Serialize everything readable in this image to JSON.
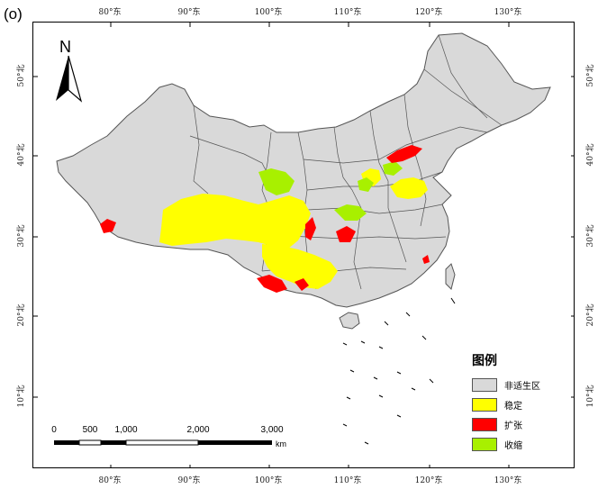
{
  "panel_label": "(o)",
  "north_label": "N",
  "axes": {
    "top": [
      "80°东",
      "90°东",
      "100°东",
      "110°东",
      "120°东",
      "130°东"
    ],
    "bottom": [
      "80°东",
      "90°东",
      "100°东",
      "110°东",
      "120°东",
      "130°东"
    ],
    "left": [
      "50°北",
      "40°北",
      "30°北",
      "20°北",
      "10°北"
    ],
    "right": [
      "50°北",
      "40°北",
      "30°北",
      "20°北",
      "10°北"
    ]
  },
  "scale_bar": {
    "ticks": [
      "0",
      "500",
      "1,000",
      "2,000",
      "3,000"
    ],
    "unit": "km"
  },
  "legend": {
    "title": "图例",
    "items": [
      {
        "label": "非适生区",
        "color": "#d9d9d9"
      },
      {
        "label": "稳定",
        "color": "#ffff00"
      },
      {
        "label": "扩张",
        "color": "#ff0000"
      },
      {
        "label": "收缩",
        "color": "#a8f000"
      }
    ]
  }
}
